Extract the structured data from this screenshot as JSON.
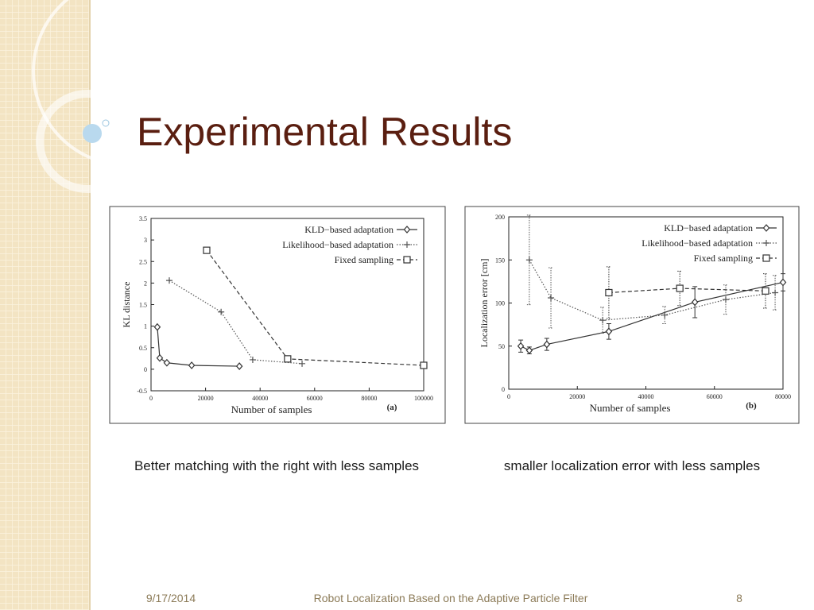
{
  "slide": {
    "title": "Experimental Results",
    "captions": [
      "Better matching with the right with less samples",
      "smaller localization error with less samples"
    ],
    "footer": {
      "date": "9/17/2014",
      "text": "Robot Localization Based on the Adaptive Particle Filter",
      "page": "8"
    }
  },
  "chart_data": [
    {
      "type": "line",
      "annotation": "(a)",
      "xlabel": "Number of samples",
      "ylabel": "KL distance",
      "xlim": [
        0,
        100000
      ],
      "xticks": [
        0,
        20000,
        40000,
        60000,
        80000,
        100000
      ],
      "ylim": [
        -0.5,
        3.5
      ],
      "yticks": [
        -0.5,
        0,
        0.5,
        1,
        1.5,
        2,
        2.5,
        3,
        3.5
      ],
      "legend": "top-right",
      "series": [
        {
          "name": "KLD−based adaptation",
          "color": "#333333",
          "style": "solid",
          "marker": "diamond",
          "x": [
            2300,
            3200,
            5800,
            14900,
            32400
          ],
          "values": [
            0.98,
            0.26,
            0.15,
            0.09,
            0.07
          ]
        },
        {
          "name": "Likelihood−based adaptation",
          "color": "#555555",
          "style": "dotted",
          "marker": "plus",
          "x": [
            6700,
            25700,
            37300,
            55400
          ],
          "values": [
            2.06,
            1.33,
            0.22,
            0.13
          ]
        },
        {
          "name": "Fixed sampling",
          "color": "#333333",
          "style": "dashed",
          "marker": "square",
          "x": [
            20400,
            50100,
            100000
          ],
          "values": [
            2.76,
            0.24,
            0.09
          ]
        }
      ]
    },
    {
      "type": "line",
      "annotation": "(b)",
      "xlabel": "Number of samples",
      "ylabel": "Localization error [cm]",
      "xlim": [
        0,
        80000
      ],
      "xticks": [
        0,
        20000,
        40000,
        60000,
        80000
      ],
      "ylim": [
        0,
        200
      ],
      "yticks": [
        0,
        50,
        100,
        150,
        200
      ],
      "legend": "top-right",
      "series": [
        {
          "name": "KLD−based adaptation",
          "color": "#333333",
          "style": "solid",
          "marker": "diamond",
          "x": [
            3500,
            6000,
            11100,
            29200,
            54300,
            80000
          ],
          "values": [
            50,
            45,
            52,
            67,
            101,
            124
          ],
          "errors": [
            7,
            4,
            7,
            9,
            18,
            10
          ]
        },
        {
          "name": "Likelihood−based adaptation",
          "color": "#555555",
          "style": "dotted",
          "marker": "plus",
          "x": [
            6000,
            12300,
            27400,
            45500,
            63300,
            77700
          ],
          "values": [
            150,
            106,
            80,
            86,
            104,
            112
          ],
          "errors": [
            52,
            35,
            15,
            10,
            17,
            20
          ]
        },
        {
          "name": "Fixed sampling",
          "color": "#333333",
          "style": "dashed",
          "marker": "square",
          "x": [
            29200,
            49900,
            74900
          ],
          "values": [
            112,
            117,
            114
          ],
          "errors": [
            30,
            20,
            20
          ]
        }
      ]
    }
  ]
}
